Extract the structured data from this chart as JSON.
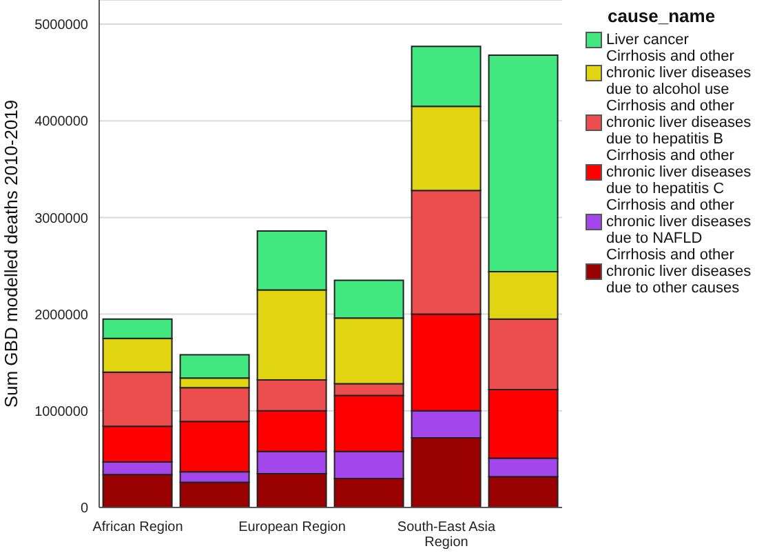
{
  "chart_data": {
    "type": "bar",
    "stacked": true,
    "ylabel": "Sum GBD modelled deaths 2010-2019",
    "legend_title": "cause_name",
    "legend": "right",
    "grid": "y",
    "categories": [
      "African Region",
      null,
      "European Region",
      null,
      "South-East Asia Region",
      null
    ],
    "ylim": [
      0,
      5250000
    ],
    "yticks": [
      0,
      1000000,
      2000000,
      3000000,
      4000000,
      5000000
    ],
    "series": [
      {
        "name": "Cirrhosis and other chronic liver diseases due to other causes",
        "color": "#990000",
        "values": [
          340000,
          260000,
          350000,
          300000,
          720000,
          320000
        ]
      },
      {
        "name": "Cirrhosis and other chronic liver diseases due to NAFLD",
        "color": "#a347ed",
        "values": [
          130000,
          110000,
          230000,
          280000,
          280000,
          190000
        ]
      },
      {
        "name": "Cirrhosis and other chronic liver diseases due to hepatitis C",
        "color": "#ff0000",
        "values": [
          370000,
          520000,
          420000,
          580000,
          1000000,
          710000
        ]
      },
      {
        "name": "Cirrhosis and other chronic liver diseases due to hepatitis B",
        "color": "#ec4e4e",
        "values": [
          560000,
          350000,
          320000,
          120000,
          1280000,
          730000
        ]
      },
      {
        "name": "Cirrhosis and other chronic liver diseases due to alcohol use",
        "color": "#e1d512",
        "values": [
          350000,
          100000,
          930000,
          680000,
          870000,
          490000
        ]
      },
      {
        "name": "Liver cancer",
        "color": "#41e87f",
        "values": [
          200000,
          240000,
          610000,
          390000,
          620000,
          2240000
        ]
      }
    ]
  }
}
